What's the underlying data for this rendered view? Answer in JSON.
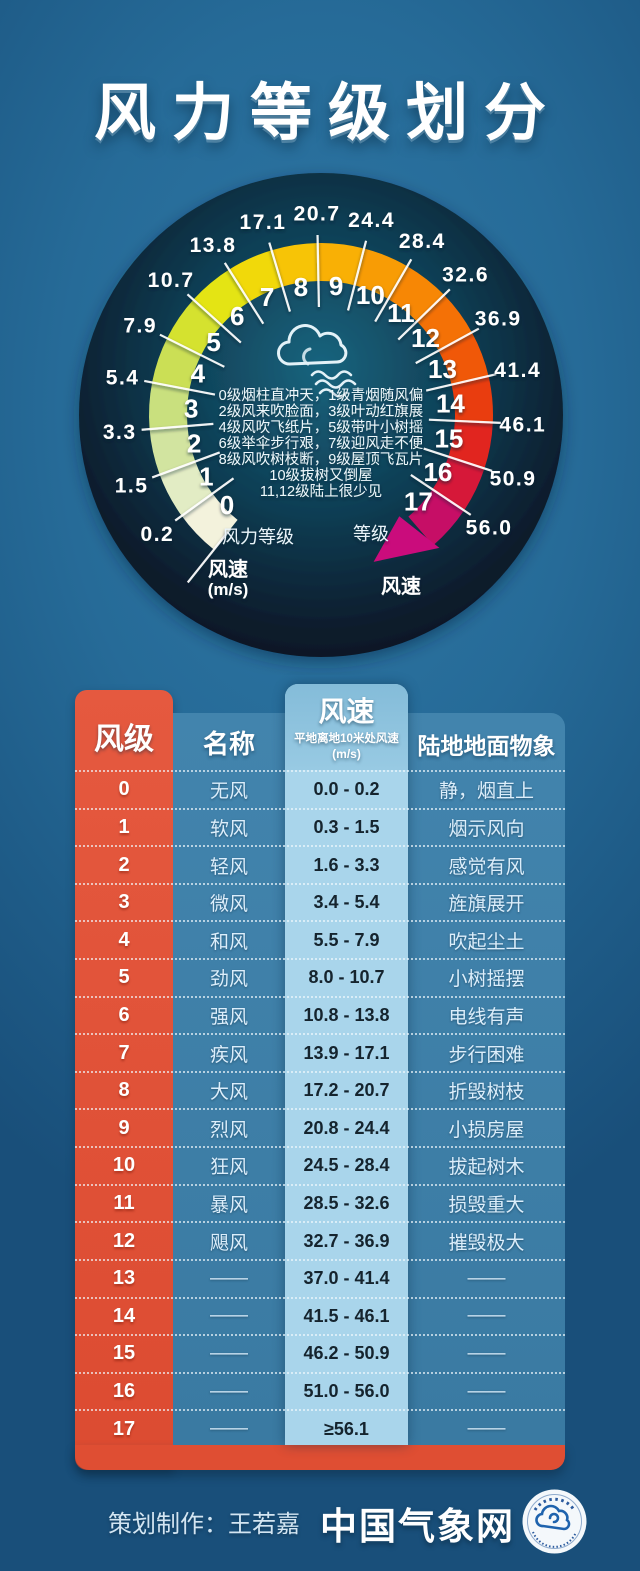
{
  "title": "风力等级划分",
  "gauge": {
    "inner_scale_label": "风力等级",
    "right_scale_label": "等级",
    "left_speed_label": "风速",
    "left_speed_unit": "(m/s)",
    "right_speed_label": "风速",
    "levels": [
      "0",
      "1",
      "2",
      "3",
      "4",
      "5",
      "6",
      "7",
      "8",
      "9",
      "10",
      "11",
      "12",
      "13",
      "14",
      "15",
      "16",
      "17"
    ],
    "boundary_speeds": [
      "0.2",
      "1.5",
      "3.3",
      "5.4",
      "7.9",
      "10.7",
      "13.8",
      "17.1",
      "20.7",
      "24.4",
      "28.4",
      "32.6",
      "36.9",
      "41.4",
      "46.1",
      "50.9",
      "56.0"
    ],
    "segment_colors": [
      "#f3f2dc",
      "#e2ecc4",
      "#d2e4a0",
      "#c9e07e",
      "#cbdf55",
      "#d5e22f",
      "#e4e414",
      "#f1d90a",
      "#f7c406",
      "#f9b005",
      "#f89c05",
      "#f78705",
      "#f47106",
      "#f05808",
      "#e93d0f",
      "#e1251f",
      "#d61839",
      "#c60e66"
    ],
    "arrow_color": "#ca0c7c",
    "rhyme_lines": [
      "0级烟柱直冲天，1级青烟随风偏",
      "2级风来吹脸面，3级叶动红旗展",
      "4级风吹飞纸片，5级带叶小树摇",
      "6级举伞步行艰，7级迎风走不便",
      "8级风吹树枝断，9级屋顶飞瓦片",
      "10级拔树又倒屋",
      "11,12级陆上很少见"
    ]
  },
  "table": {
    "header": {
      "level": "风级",
      "name": "名称",
      "speed_title": "风速",
      "speed_subtitle": "平地离地10米处风速",
      "speed_unit": "(m/s)",
      "phenomena": "陆地地面物象"
    },
    "rows": [
      {
        "level": "0",
        "name": "无风",
        "speed": "0.0 - 0.2",
        "phenomena": "静，烟直上"
      },
      {
        "level": "1",
        "name": "软风",
        "speed": "0.3 - 1.5",
        "phenomena": "烟示风向"
      },
      {
        "level": "2",
        "name": "轻风",
        "speed": "1.6 - 3.3",
        "phenomena": "感觉有风"
      },
      {
        "level": "3",
        "name": "微风",
        "speed": "3.4 - 5.4",
        "phenomena": "旌旗展开"
      },
      {
        "level": "4",
        "name": "和风",
        "speed": "5.5 - 7.9",
        "phenomena": "吹起尘土"
      },
      {
        "level": "5",
        "name": "劲风",
        "speed": "8.0 - 10.7",
        "phenomena": "小树摇摆"
      },
      {
        "level": "6",
        "name": "强风",
        "speed": "10.8 - 13.8",
        "phenomena": "电线有声"
      },
      {
        "level": "7",
        "name": "疾风",
        "speed": "13.9 - 17.1",
        "phenomena": "步行困难"
      },
      {
        "level": "8",
        "name": "大风",
        "speed": "17.2 - 20.7",
        "phenomena": "折毁树枝"
      },
      {
        "level": "9",
        "name": "烈风",
        "speed": "20.8 - 24.4",
        "phenomena": "小损房屋"
      },
      {
        "level": "10",
        "name": "狂风",
        "speed": "24.5 - 28.4",
        "phenomena": "拔起树木"
      },
      {
        "level": "11",
        "name": "暴风",
        "speed": "28.5 - 32.6",
        "phenomena": "损毁重大"
      },
      {
        "level": "12",
        "name": "飓风",
        "speed": "32.7 - 36.9",
        "phenomena": "摧毁极大"
      },
      {
        "level": "13",
        "name": "——",
        "speed": "37.0 - 41.4",
        "phenomena": "——"
      },
      {
        "level": "14",
        "name": "——",
        "speed": "41.5 - 46.1",
        "phenomena": "——"
      },
      {
        "level": "15",
        "name": "——",
        "speed": "46.2 - 50.9",
        "phenomena": "——"
      },
      {
        "level": "16",
        "name": "——",
        "speed": "51.0 - 56.0",
        "phenomena": "——"
      },
      {
        "level": "17",
        "name": "——",
        "speed": "≥56.1",
        "phenomena": "——"
      }
    ],
    "colors": {
      "accent_red": "#df4e33",
      "table_blue": "#3a7aa2",
      "speed_col": "#a9d5eb"
    }
  },
  "footer": {
    "credit": "策划制作：王若嘉",
    "brand": "中国气象网",
    "logo": "china-meteorological-logo"
  },
  "chart_data": {
    "type": "table",
    "title": "风力等级划分",
    "columns": [
      "风级",
      "名称",
      "风速 平地离地10米处风速(m/s)",
      "陆地地面物象"
    ],
    "rows": [
      [
        "0",
        "无风",
        "0.0 - 0.2",
        "静，烟直上"
      ],
      [
        "1",
        "软风",
        "0.3 - 1.5",
        "烟示风向"
      ],
      [
        "2",
        "轻风",
        "1.6 - 3.3",
        "感觉有风"
      ],
      [
        "3",
        "微风",
        "3.4 - 5.4",
        "旌旗展开"
      ],
      [
        "4",
        "和风",
        "5.5 - 7.9",
        "吹起尘土"
      ],
      [
        "5",
        "劲风",
        "8.0 - 10.7",
        "小树摇摆"
      ],
      [
        "6",
        "强风",
        "10.8 - 13.8",
        "电线有声"
      ],
      [
        "7",
        "疾风",
        "13.9 - 17.1",
        "步行困难"
      ],
      [
        "8",
        "大风",
        "17.2 - 20.7",
        "折毁树枝"
      ],
      [
        "9",
        "烈风",
        "20.8 - 24.4",
        "小损房屋"
      ],
      [
        "10",
        "狂风",
        "24.5 - 28.4",
        "拔起树木"
      ],
      [
        "11",
        "暴风",
        "28.5 - 32.6",
        "损毁重大"
      ],
      [
        "12",
        "飓风",
        "32.7 - 36.9",
        "摧毁极大"
      ],
      [
        "13",
        "——",
        "37.0 - 41.4",
        "——"
      ],
      [
        "14",
        "——",
        "41.5 - 46.1",
        "——"
      ],
      [
        "15",
        "——",
        "46.2 - 50.9",
        "——"
      ],
      [
        "16",
        "——",
        "51.0 - 56.0",
        "——"
      ],
      [
        "17",
        "——",
        "≥56.1",
        "——"
      ]
    ],
    "gauge_boundary_speeds_mps": [
      0.2,
      1.5,
      3.3,
      5.4,
      7.9,
      10.7,
      13.8,
      17.1,
      20.7,
      24.4,
      28.4,
      32.6,
      36.9,
      41.4,
      46.1,
      50.9,
      56.0
    ],
    "gauge_levels": [
      0,
      1,
      2,
      3,
      4,
      5,
      6,
      7,
      8,
      9,
      10,
      11,
      12,
      13,
      14,
      15,
      16,
      17
    ]
  }
}
